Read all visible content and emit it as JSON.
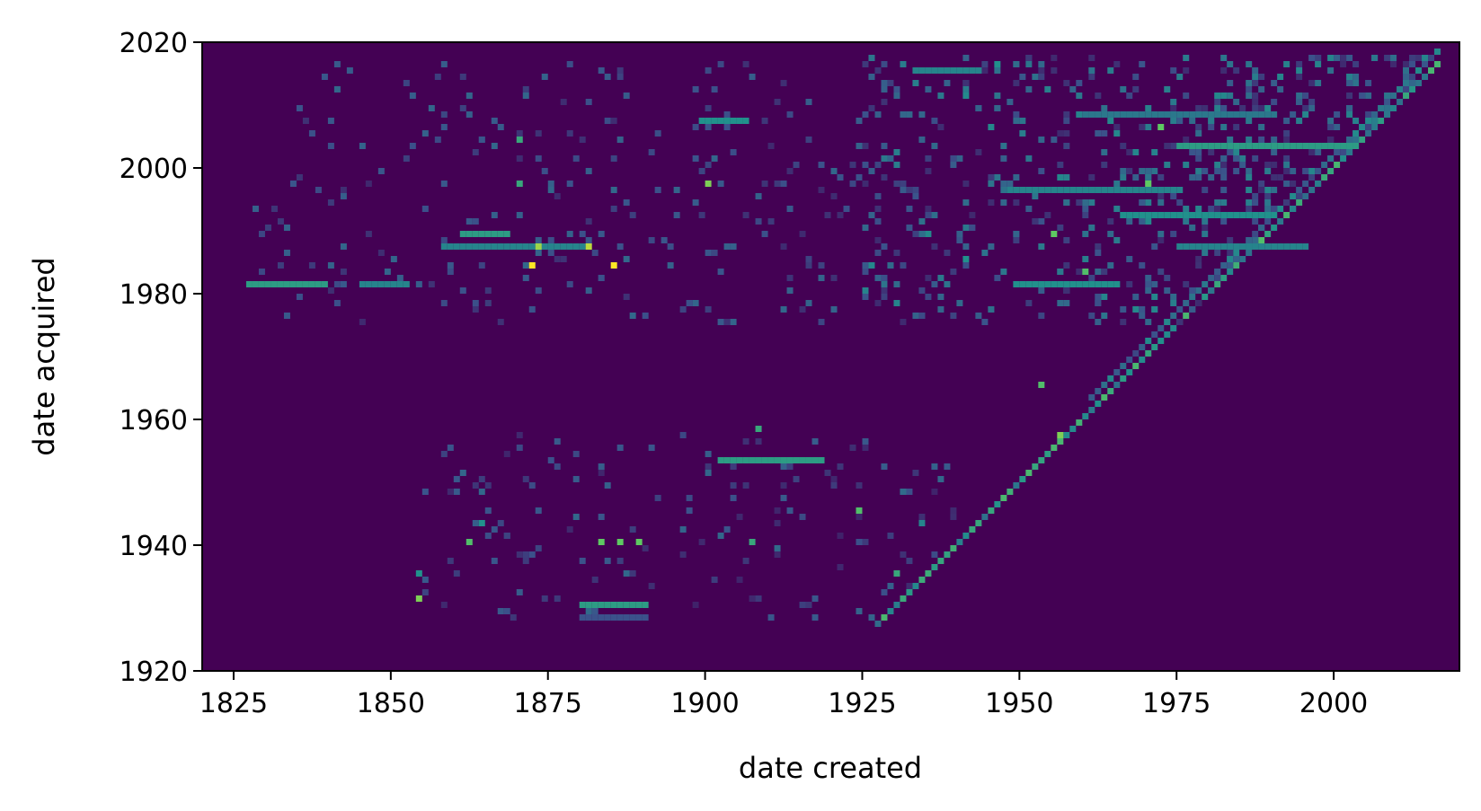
{
  "chart_data": {
    "type": "heatmap",
    "title": "",
    "xlabel": "date created",
    "ylabel": "date acquired",
    "xlim": [
      1820,
      2020
    ],
    "ylim": [
      1920,
      2020
    ],
    "x_ticks": [
      "1825",
      "1850",
      "1875",
      "1900",
      "1925",
      "1950",
      "1975",
      "2000"
    ],
    "y_ticks": [
      "1920",
      "1940",
      "1960",
      "1980",
      "2000",
      "2020"
    ],
    "colormap": "viridis",
    "background_color": "#440154",
    "grid": false,
    "bin_size_years": 1,
    "segments": [
      {
        "x0": 1827,
        "x1": 1839,
        "y": 1981.5,
        "level": 0.55
      },
      {
        "x0": 1845,
        "x1": 1852,
        "y": 1981.5,
        "level": 0.45
      },
      {
        "x0": 1858,
        "x1": 1880,
        "y": 1987.5,
        "level": 0.45
      },
      {
        "x0": 1861,
        "x1": 1868,
        "y": 1989.5,
        "level": 0.55
      },
      {
        "x0": 1880,
        "x1": 1890,
        "y": 1930.5,
        "level": 0.55
      },
      {
        "x0": 1880,
        "x1": 1890,
        "y": 1928.5,
        "level": 0.25
      },
      {
        "x0": 1902,
        "x1": 1918,
        "y": 1953.5,
        "level": 0.55
      },
      {
        "x0": 1899,
        "x1": 1906,
        "y": 2007.5,
        "level": 0.5
      },
      {
        "x0": 1949,
        "x1": 1965,
        "y": 1981.5,
        "level": 0.5
      },
      {
        "x0": 1948,
        "x1": 1975,
        "y": 1996.5,
        "level": 0.45
      },
      {
        "x0": 1966,
        "x1": 1990,
        "y": 1992.5,
        "level": 0.5
      },
      {
        "x0": 1975,
        "x1": 2003,
        "y": 2003.5,
        "level": 0.55
      },
      {
        "x0": 1960,
        "x1": 1990,
        "y": 2008.5,
        "level": 0.4
      },
      {
        "x0": 1975,
        "x1": 1995,
        "y": 1987.5,
        "level": 0.45
      },
      {
        "x0": 1933,
        "x1": 1943,
        "y": 2015.5,
        "level": 0.45
      }
    ],
    "cells": [
      {
        "x": 1872,
        "y": 1984.5,
        "level": 1.0
      },
      {
        "x": 1885,
        "y": 1984.5,
        "level": 1.0
      },
      {
        "x": 1881,
        "y": 1987.5,
        "level": 0.9
      },
      {
        "x": 1873,
        "y": 1987.5,
        "level": 0.85
      },
      {
        "x": 1900,
        "y": 1997.5,
        "level": 0.8
      },
      {
        "x": 1854,
        "y": 1931.5,
        "level": 0.8
      },
      {
        "x": 1862,
        "y": 1940.5,
        "level": 0.7
      },
      {
        "x": 1883,
        "y": 1940.5,
        "level": 0.75
      },
      {
        "x": 1886,
        "y": 1940.5,
        "level": 0.75
      },
      {
        "x": 1889,
        "y": 1940.5,
        "level": 0.75
      },
      {
        "x": 1924,
        "y": 1945.5,
        "level": 0.7
      },
      {
        "x": 1953,
        "y": 1965.5,
        "level": 0.7
      },
      {
        "x": 1956,
        "y": 1957.5,
        "level": 0.8
      },
      {
        "x": 1955,
        "y": 1989.5,
        "level": 0.75
      },
      {
        "x": 1960,
        "y": 1983.5,
        "level": 0.7
      },
      {
        "x": 1972,
        "y": 2006.5,
        "level": 0.75
      },
      {
        "x": 1970,
        "y": 1997.5,
        "level": 0.75
      },
      {
        "x": 1946,
        "y": 2016.5,
        "level": 0.5
      },
      {
        "x": 1908,
        "y": 1958.5,
        "level": 0.6
      },
      {
        "x": 1907,
        "y": 1940.5,
        "level": 0.6
      },
      {
        "x": 1870,
        "y": 2004.5,
        "level": 0.6
      },
      {
        "x": 1870,
        "y": 1997.5,
        "level": 0.6
      },
      {
        "x": 1854,
        "y": 1935.5,
        "level": 0.5
      },
      {
        "x": 1864,
        "y": 1943.5,
        "level": 0.5
      },
      {
        "x": 1930,
        "y": 1981.5,
        "level": 0.35
      },
      {
        "x": 1941,
        "y": 1985.5,
        "level": 0.5
      },
      {
        "x": 1930,
        "y": 1935.5,
        "level": 0.6
      },
      {
        "x": 1934,
        "y": 1943.5,
        "level": 0.45
      }
    ]
  }
}
